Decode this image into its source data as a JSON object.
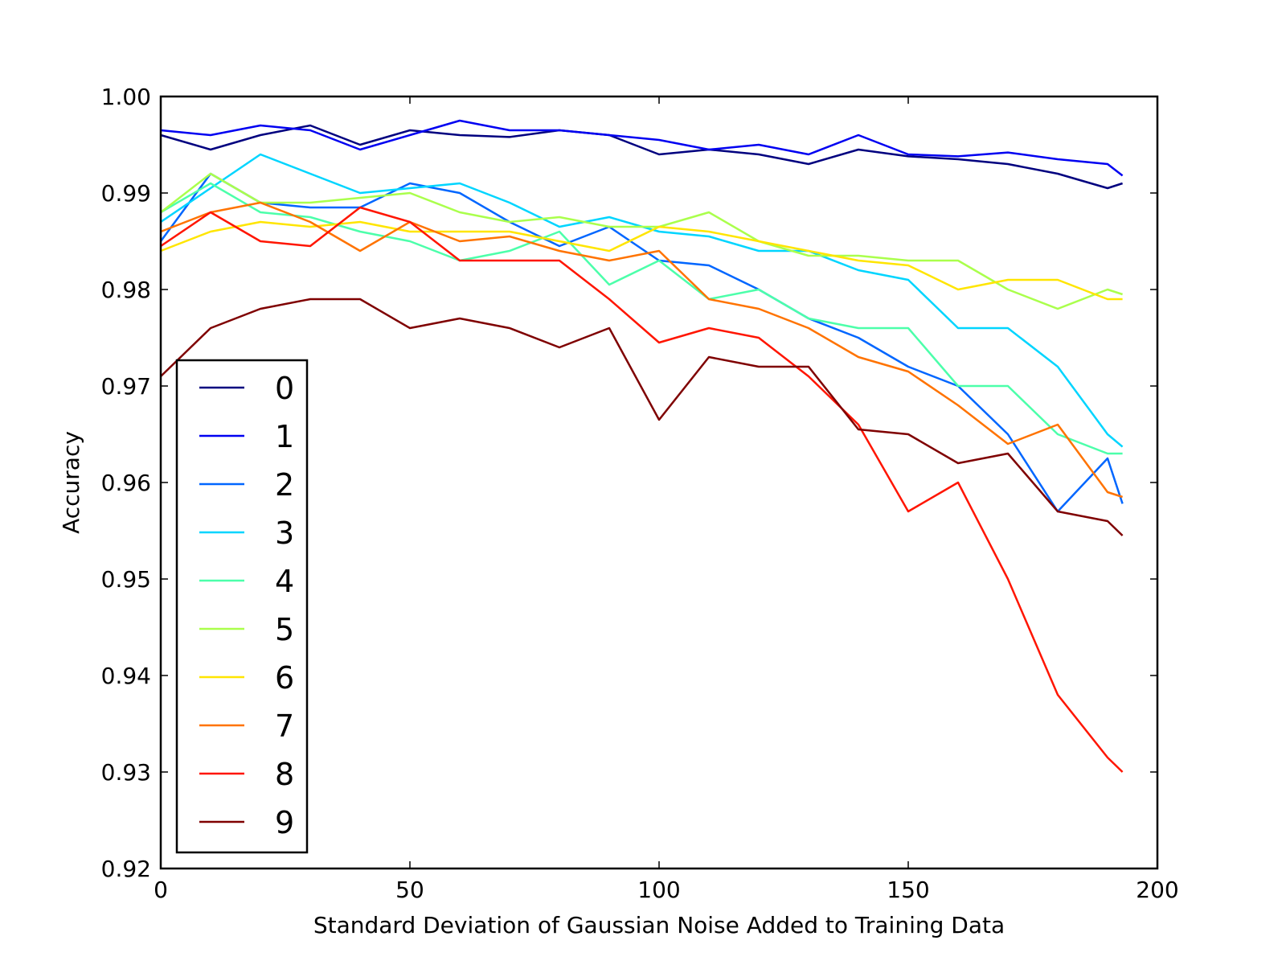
{
  "chart_data": {
    "type": "line",
    "title": "",
    "xlabel": "Standard Deviation of Gaussian Noise Added to Training Data",
    "ylabel": "Accuracy",
    "xlim": [
      0,
      200
    ],
    "ylim": [
      0.92,
      1.0
    ],
    "xticks": [
      0,
      50,
      100,
      150,
      200
    ],
    "xtick_labels": [
      "0",
      "50",
      "100",
      "150",
      "200"
    ],
    "yticks": [
      0.92,
      0.93,
      0.94,
      0.95,
      0.96,
      0.97,
      0.98,
      0.99,
      1.0
    ],
    "ytick_labels": [
      "0.92",
      "0.93",
      "0.94",
      "0.95",
      "0.96",
      "0.97",
      "0.98",
      "0.99",
      "1.00"
    ],
    "grid": false,
    "legend_position": "lower-left",
    "x": [
      0,
      10,
      20,
      30,
      40,
      50,
      60,
      70,
      80,
      90,
      100,
      110,
      120,
      130,
      140,
      150,
      160,
      170,
      180,
      190,
      193
    ],
    "series": [
      {
        "name": "0",
        "color": "#00007f",
        "values": [
          0.996,
          0.9945,
          0.996,
          0.997,
          0.995,
          0.9965,
          0.996,
          0.9958,
          0.9965,
          0.996,
          0.994,
          0.9945,
          0.994,
          0.993,
          0.9945,
          0.9938,
          0.9935,
          0.993,
          0.992,
          0.9905,
          0.991
        ]
      },
      {
        "name": "1",
        "color": "#0000f1",
        "values": [
          0.9965,
          0.996,
          0.997,
          0.9965,
          0.9945,
          0.996,
          0.9975,
          0.9965,
          0.9965,
          0.996,
          0.9955,
          0.9945,
          0.995,
          0.994,
          0.996,
          0.994,
          0.9938,
          0.9942,
          0.9935,
          0.993,
          0.9918
        ]
      },
      {
        "name": "2",
        "color": "#0066ff",
        "values": [
          0.985,
          0.992,
          0.989,
          0.9885,
          0.9885,
          0.991,
          0.99,
          0.987,
          0.9845,
          0.9865,
          0.983,
          0.9825,
          0.98,
          0.977,
          0.975,
          0.972,
          0.97,
          0.965,
          0.957,
          0.9625,
          0.9578
        ]
      },
      {
        "name": "3",
        "color": "#00d5ff",
        "values": [
          0.987,
          0.9905,
          0.994,
          0.992,
          0.99,
          0.9905,
          0.991,
          0.989,
          0.9865,
          0.9875,
          0.986,
          0.9855,
          0.984,
          0.984,
          0.982,
          0.981,
          0.976,
          0.976,
          0.972,
          0.965,
          0.9637
        ]
      },
      {
        "name": "4",
        "color": "#4cffaa",
        "values": [
          0.988,
          0.991,
          0.988,
          0.9875,
          0.986,
          0.985,
          0.983,
          0.984,
          0.986,
          0.9805,
          0.983,
          0.979,
          0.98,
          0.977,
          0.976,
          0.976,
          0.97,
          0.97,
          0.965,
          0.963,
          0.963
        ]
      },
      {
        "name": "5",
        "color": "#aaff4c",
        "values": [
          0.988,
          0.992,
          0.989,
          0.989,
          0.9895,
          0.99,
          0.988,
          0.987,
          0.9875,
          0.9865,
          0.9865,
          0.988,
          0.985,
          0.9835,
          0.9835,
          0.983,
          0.983,
          0.98,
          0.978,
          0.98,
          0.9795
        ]
      },
      {
        "name": "6",
        "color": "#ffe500",
        "values": [
          0.984,
          0.986,
          0.987,
          0.9865,
          0.987,
          0.986,
          0.986,
          0.986,
          0.985,
          0.984,
          0.9865,
          0.986,
          0.985,
          0.984,
          0.983,
          0.9825,
          0.98,
          0.981,
          0.981,
          0.979,
          0.979
        ]
      },
      {
        "name": "7",
        "color": "#ff7300",
        "values": [
          0.986,
          0.988,
          0.989,
          0.987,
          0.984,
          0.987,
          0.985,
          0.9855,
          0.984,
          0.983,
          0.984,
          0.979,
          0.978,
          0.976,
          0.973,
          0.9715,
          0.968,
          0.964,
          0.966,
          0.959,
          0.9585
        ]
      },
      {
        "name": "8",
        "color": "#ff1500",
        "values": [
          0.9845,
          0.988,
          0.985,
          0.9845,
          0.9885,
          0.987,
          0.983,
          0.983,
          0.983,
          0.979,
          0.9745,
          0.976,
          0.975,
          0.971,
          0.966,
          0.957,
          0.96,
          0.95,
          0.938,
          0.9315,
          0.93
        ]
      },
      {
        "name": "9",
        "color": "#7f0000",
        "values": [
          0.971,
          0.976,
          0.978,
          0.979,
          0.979,
          0.976,
          0.977,
          0.976,
          0.974,
          0.976,
          0.9665,
          0.973,
          0.972,
          0.972,
          0.9655,
          0.965,
          0.962,
          0.963,
          0.957,
          0.956,
          0.9545
        ]
      }
    ]
  }
}
